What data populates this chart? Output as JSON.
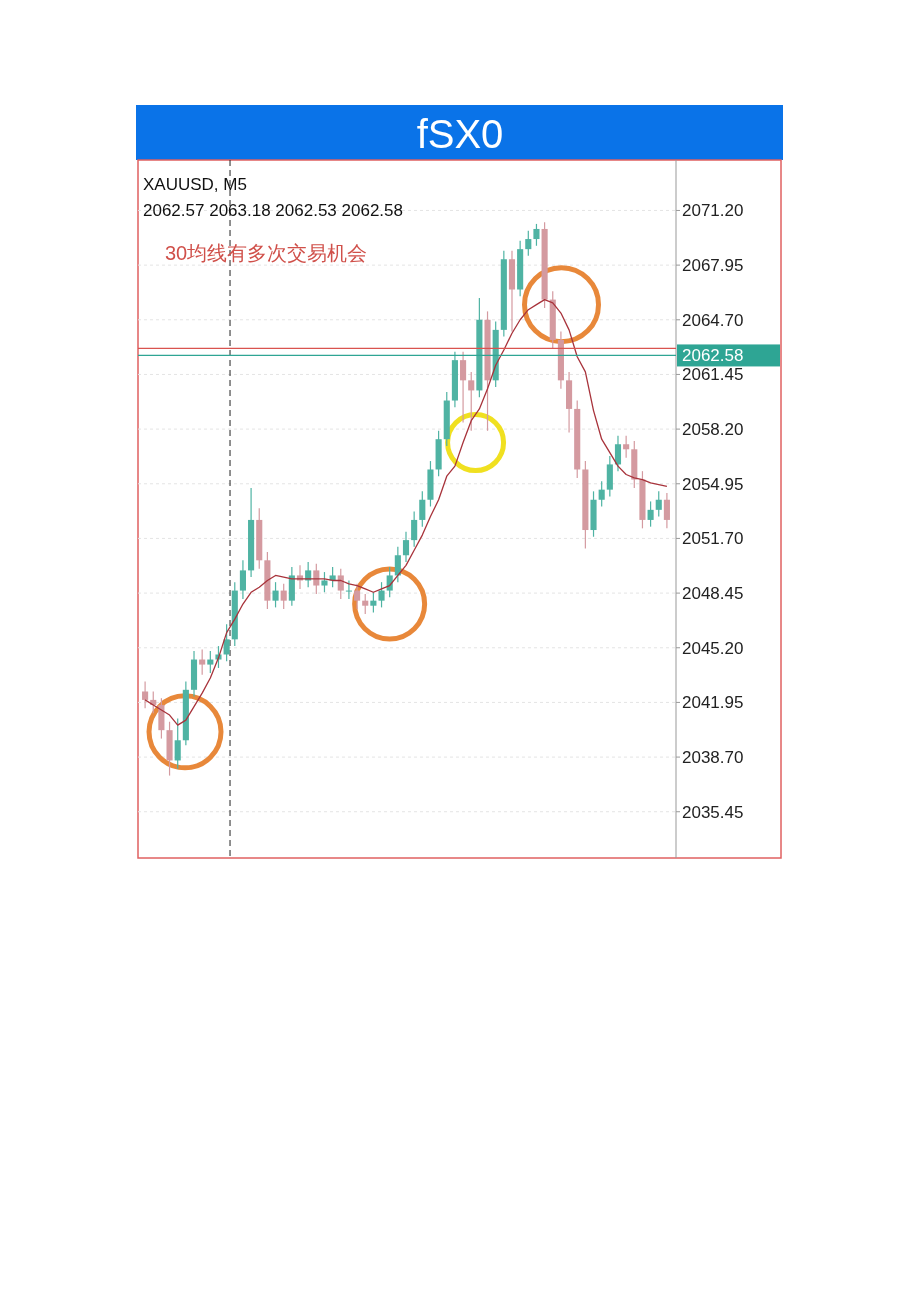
{
  "chart_data": {
    "type": "candlestick",
    "title": "fSX0",
    "annotations": [
      "XAUUSD, M5",
      "2062.57 2063.18 2062.53 2062.58",
      "30均线有多次交易机会"
    ],
    "categories": [
      null,
      null,
      null,
      null,
      null,
      null,
      null,
      null,
      null,
      null,
      null,
      null,
      null,
      null,
      null,
      null,
      null,
      null,
      null,
      null,
      null,
      null,
      null,
      null,
      null,
      null,
      null,
      null,
      null,
      null,
      null,
      null,
      null,
      null,
      null,
      null,
      null,
      null,
      null,
      null,
      null,
      null,
      null,
      null,
      null,
      null,
      null,
      null,
      null,
      null,
      null,
      null,
      null,
      null,
      null,
      null,
      null,
      null,
      null,
      null,
      null,
      null,
      null,
      null,
      null
    ],
    "series": [
      {
        "type": "candlestick",
        "colors": [
          "#d49aa0",
          "#d49aa0",
          "#d49aa0",
          "#d49aa0",
          "#4fb3a3",
          "#4fb3a3",
          "#4fb3a3",
          "#d49aa0",
          "#4fb3a3",
          "#4fb3a3",
          "#4fb3a3",
          "#4fb3a3",
          "#4fb3a3",
          "#4fb3a3",
          "#d49aa0",
          "#d49aa0",
          "#4fb3a3",
          "#d49aa0",
          "#4fb3a3",
          "#d49aa0",
          "#4fb3a3",
          "#d49aa0",
          "#4fb3a3",
          "#4fb3a3",
          "#d49aa0",
          "#4fb3a3",
          "#d49aa0",
          "#d49aa0",
          "#4fb3a3",
          "#4fb3a3",
          "#4fb3a3",
          "#4fb3a3",
          "#4fb3a3",
          "#4fb3a3",
          "#4fb3a3",
          "#4fb3a3",
          "#4fb3a3",
          "#4fb3a3",
          "#4fb3a3",
          "#d49aa0",
          "#d49aa0",
          "#4fb3a3",
          "#d49aa0",
          "#4fb3a3",
          "#4fb3a3",
          "#d49aa0",
          "#4fb3a3",
          "#4fb3a3",
          "#4fb3a3",
          "#d49aa0",
          "#d49aa0",
          "#d49aa0",
          "#d49aa0",
          "#d49aa0",
          "#d49aa0",
          "#4fb3a3",
          "#4fb3a3",
          "#4fb3a3",
          "#4fb3a3",
          "#d49aa0",
          "#d49aa0",
          "#d49aa0",
          "#4fb3a3",
          "#4fb3a3",
          "#d49aa0"
        ],
        "ohlc": [
          [
            2042.6,
            2043.2,
            2041.6,
            2042.1
          ],
          [
            2042.1,
            2042.6,
            2041.3,
            2041.8
          ],
          [
            2041.8,
            2042.2,
            2039.8,
            2040.3
          ],
          [
            2040.3,
            2040.8,
            2037.6,
            2038.5
          ],
          [
            2038.5,
            2041.0,
            2038.0,
            2039.7
          ],
          [
            2039.7,
            2043.2,
            2039.4,
            2042.7
          ],
          [
            2042.7,
            2045.0,
            2042.3,
            2044.5
          ],
          [
            2044.5,
            2045.1,
            2043.6,
            2044.2
          ],
          [
            2044.2,
            2045.0,
            2043.7,
            2044.5
          ],
          [
            2044.5,
            2045.3,
            2044.0,
            2044.8
          ],
          [
            2044.8,
            2046.6,
            2044.4,
            2045.7
          ],
          [
            2045.7,
            2049.1,
            2045.3,
            2048.6
          ],
          [
            2048.6,
            2050.4,
            2048.1,
            2049.8
          ],
          [
            2049.8,
            2054.7,
            2049.4,
            2052.8
          ],
          [
            2052.8,
            2053.5,
            2049.9,
            2050.4
          ],
          [
            2050.4,
            2050.9,
            2047.5,
            2048.0
          ],
          [
            2048.0,
            2049.1,
            2047.6,
            2048.6
          ],
          [
            2048.6,
            2049.0,
            2047.5,
            2048.0
          ],
          [
            2048.0,
            2050.0,
            2047.7,
            2049.5
          ],
          [
            2049.5,
            2050.1,
            2048.7,
            2049.2
          ],
          [
            2049.2,
            2050.3,
            2048.8,
            2049.8
          ],
          [
            2049.8,
            2050.2,
            2048.4,
            2048.9
          ],
          [
            2048.9,
            2049.7,
            2048.5,
            2049.2
          ],
          [
            2049.2,
            2050.0,
            2048.8,
            2049.5
          ],
          [
            2049.5,
            2049.9,
            2048.1,
            2048.6
          ],
          [
            2048.6,
            2049.2,
            2048.1,
            2048.6
          ],
          [
            2048.6,
            2049.0,
            2047.5,
            2048.0
          ],
          [
            2048.0,
            2048.4,
            2047.2,
            2047.7
          ],
          [
            2047.7,
            2048.5,
            2047.3,
            2048.0
          ],
          [
            2048.0,
            2049.1,
            2047.6,
            2048.6
          ],
          [
            2048.6,
            2050.0,
            2048.2,
            2049.5
          ],
          [
            2049.5,
            2051.2,
            2049.1,
            2050.7
          ],
          [
            2050.7,
            2052.1,
            2050.3,
            2051.6
          ],
          [
            2051.6,
            2053.3,
            2051.2,
            2052.8
          ],
          [
            2052.8,
            2054.5,
            2052.4,
            2054.0
          ],
          [
            2054.0,
            2056.3,
            2053.6,
            2055.8
          ],
          [
            2055.8,
            2058.1,
            2055.4,
            2057.6
          ],
          [
            2057.6,
            2060.4,
            2057.2,
            2059.9
          ],
          [
            2059.9,
            2062.8,
            2059.5,
            2062.3
          ],
          [
            2062.3,
            2062.8,
            2058.6,
            2061.1
          ],
          [
            2061.1,
            2061.6,
            2058.1,
            2060.5
          ],
          [
            2060.5,
            2066.0,
            2060.1,
            2064.7
          ],
          [
            2064.7,
            2065.2,
            2058.1,
            2061.1
          ],
          [
            2061.1,
            2064.6,
            2060.7,
            2064.1
          ],
          [
            2064.1,
            2068.8,
            2063.7,
            2068.3
          ],
          [
            2068.3,
            2068.8,
            2064.0,
            2066.5
          ],
          [
            2066.5,
            2069.4,
            2066.1,
            2068.9
          ],
          [
            2068.9,
            2070.0,
            2068.5,
            2069.5
          ],
          [
            2069.5,
            2070.4,
            2069.1,
            2070.1
          ],
          [
            2070.1,
            2070.5,
            2065.4,
            2065.9
          ],
          [
            2065.9,
            2066.4,
            2063.0,
            2063.5
          ],
          [
            2063.5,
            2064.0,
            2060.6,
            2061.1
          ],
          [
            2061.1,
            2061.6,
            2058.0,
            2059.4
          ],
          [
            2059.4,
            2059.9,
            2055.3,
            2055.8
          ],
          [
            2055.8,
            2056.3,
            2051.1,
            2052.2
          ],
          [
            2052.2,
            2054.5,
            2051.8,
            2054.0
          ],
          [
            2054.0,
            2055.1,
            2053.6,
            2054.6
          ],
          [
            2054.6,
            2056.6,
            2054.2,
            2056.1
          ],
          [
            2056.1,
            2057.8,
            2055.7,
            2057.3
          ],
          [
            2057.3,
            2057.8,
            2056.5,
            2057.0
          ],
          [
            2057.0,
            2057.5,
            2054.7,
            2055.2
          ],
          [
            2055.2,
            2055.7,
            2052.3,
            2052.8
          ],
          [
            2052.8,
            2053.9,
            2052.4,
            2053.4
          ],
          [
            2053.4,
            2054.5,
            2053.0,
            2054.0
          ],
          [
            2054.0,
            2054.4,
            2052.3,
            2052.8
          ]
        ]
      },
      {
        "type": "line",
        "color": "#a8333b",
        "values": [
          2042.1,
          2041.8,
          2041.5,
          2041.2,
          2040.6,
          2040.9,
          2041.7,
          2042.5,
          2043.4,
          2044.6,
          2046.1,
          2046.9,
          2047.8,
          2048.5,
          2048.8,
          2049.2,
          2049.5,
          2049.4,
          2049.3,
          2049.3,
          2049.3,
          2049.3,
          2049.3,
          2049.2,
          2049.2,
          2049.0,
          2048.9,
          2048.7,
          2048.5,
          2048.7,
          2048.9,
          2049.5,
          2050.1,
          2051.0,
          2051.9,
          2053.0,
          2054.0,
          2055.4,
          2056.0,
          2057.4,
          2058.7,
          2059.4,
          2060.6,
          2062.0,
          2062.9,
          2063.9,
          2064.7,
          2065.3,
          2065.6,
          2065.9,
          2065.7,
          2065.1,
          2064.1,
          2062.5,
          2061.6,
          2059.3,
          2057.6,
          2056.8,
          2056.0,
          2055.5,
          2055.3,
          2055.2,
          2055.0,
          2054.9,
          2054.8
        ]
      }
    ],
    "ylim": [
      2032.7,
      2074.2
    ],
    "yticks": [
      {
        "value": 2071.2,
        "label": "2071.20"
      },
      {
        "value": 2067.95,
        "label": "2067.95"
      },
      {
        "value": 2064.7,
        "label": "2064.70"
      },
      {
        "value": 2061.45,
        "label": "2061.45"
      },
      {
        "value": 2058.2,
        "label": "2058.20"
      },
      {
        "value": 2054.95,
        "label": "2054.95"
      },
      {
        "value": 2051.7,
        "label": "2051.70"
      },
      {
        "value": 2048.45,
        "label": "2048.45"
      },
      {
        "value": 2045.2,
        "label": "2045.20"
      },
      {
        "value": 2041.95,
        "label": "2041.95"
      },
      {
        "value": 2038.7,
        "label": "2038.70"
      },
      {
        "value": 2035.45,
        "label": "2035.45"
      }
    ],
    "ref_lines": [
      {
        "axis": "y",
        "value": 2063.0,
        "color": "#d9534f"
      },
      {
        "axis": "y",
        "value": 2062.58,
        "label": "2062.58",
        "color": "#2ea594"
      }
    ],
    "grid": "y",
    "tick_labels": "y"
  }
}
